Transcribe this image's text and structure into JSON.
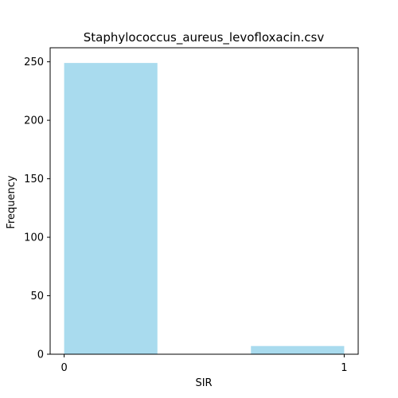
{
  "chart_data": {
    "type": "bar",
    "title": "Staphylococcus_aureus_levofloxacin.csv",
    "xlabel": "SIR",
    "ylabel": "Frequency",
    "bars": [
      {
        "x_start": 0.0,
        "x_end": 0.333,
        "value": 249
      },
      {
        "x_start": 0.667,
        "x_end": 1.0,
        "value": 7
      }
    ],
    "xlim": [
      -0.05,
      1.05
    ],
    "ylim": [
      0,
      262
    ],
    "x_ticks": [
      0,
      1
    ],
    "y_ticks": [
      0,
      50,
      100,
      150,
      200,
      250
    ],
    "bar_color": "#a9dbee",
    "grid": false
  }
}
